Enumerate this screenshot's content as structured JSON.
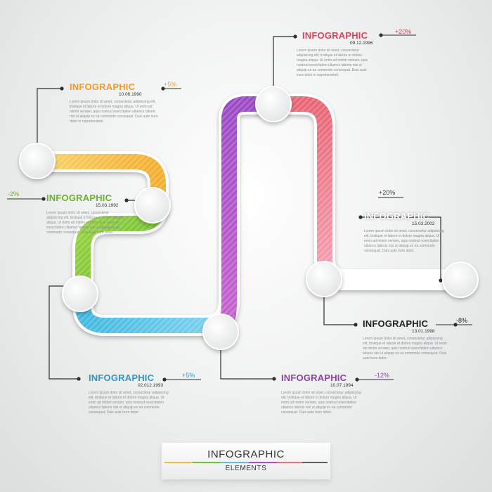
{
  "colors": {
    "yellow": "#f3bd3a",
    "green": "#74c62d",
    "cyan": "#57c3e4",
    "purple": "#b24aca",
    "pink": "#ee6f86",
    "gray": "#5c6164",
    "ink": "#222222"
  },
  "blocks": [
    {
      "title": "INFOGRAPHIC",
      "date": "10.06.1990",
      "percent": "+5%",
      "color": "#f39b2a",
      "body": "Lorem ipsum dolor sit amet, consectetur adipisicing elit, tristique et labore et dolore magna aliqua. Ut enim ad minim veniam, quis nostrud exercitation ullamco laboris nisi ut aliquip ex ea commodo consequat. Duis aute irure dolor in reprehenderit."
    },
    {
      "title": "INFOGRAPHIC",
      "date": "15.03.1992",
      "percent": "-2%",
      "color": "#6bb22d",
      "body": "Lorem ipsum dolor sit amet, consectetur adipisicing elit, tristique et labore et dolore magna aliqua. Ut enim ad minim veniam, quis nostrud exercitation ullamco laboris nisi ut aliquip ex ea commodo consequat. Duis aute irure dolor."
    },
    {
      "title": "INFOGRAPHIC",
      "date": "02.012.1993",
      "percent": "+5%",
      "color": "#2e95c9",
      "body": "Lorem ipsum dolor sit amet, consectetur adipisicing elit, tristique et labore et dolore magna aliqua. Ut enim ad minim veniam, quis nostrud exercitation ullamco laboris nisi ut aliquip ex ea commodo consequat. Duis aute irure dolor."
    },
    {
      "title": "INFOGRAPHIC",
      "date": "10.07.1994",
      "percent": "-12%",
      "color": "#8e3fae",
      "body": "Lorem ipsum dolor sit amet, consectetur adipisicing elit, tristique et labore et dolore magna aliqua. Ut enim ad minim veniam, quis nostrud exercitation ullamco laboris nisi ut aliquip ex ea commodo consequat. Duis aute irure dolor."
    },
    {
      "title": "INFOGRAPHIC",
      "date": "09.12.1996",
      "percent": "+20%",
      "color": "#d9435c",
      "body": "Lorem ipsum dolor sit amet, consectetur adipisicing elit, tristique et labore et dolore magna aliqua. Ut enim ad minim veniam, quis nostrud exercitation ullamco laboris nisi ut aliquip ex ea commodo consequat. Duis aute irure dolor in reprehenderit."
    },
    {
      "title": "INFOGRAPHIC",
      "date": "15.03.2002",
      "percent": "+20%",
      "color": "#ffffff",
      "body": "Lorem ipsum dolor sit amet, consectetur adipisicing elit, tristique et labore et dolore magna aliqua. Ut enim ad minim veniam, quis nostrud exercitation ullamco laboris nisi ut aliquip ex ea commodo consequat. Duis aute irure dolor."
    },
    {
      "title": "INFOGRAPHIC",
      "date": "13.01.1998",
      "percent": "-8%",
      "color": "#222222",
      "body": "Lorem ipsum dolor sit amet, consectetur adipisicing elit, tristique et labore et dolore magna aliqua. Ut enim ad minim veniam, quis nostrud exercitation ullamco laboris nisi ut aliquip ex ea commodo consequat. Duis aute irure dolor."
    }
  ],
  "footer": {
    "title": "INFOGRAPHIC",
    "subtitle": "ELEMENTS"
  }
}
